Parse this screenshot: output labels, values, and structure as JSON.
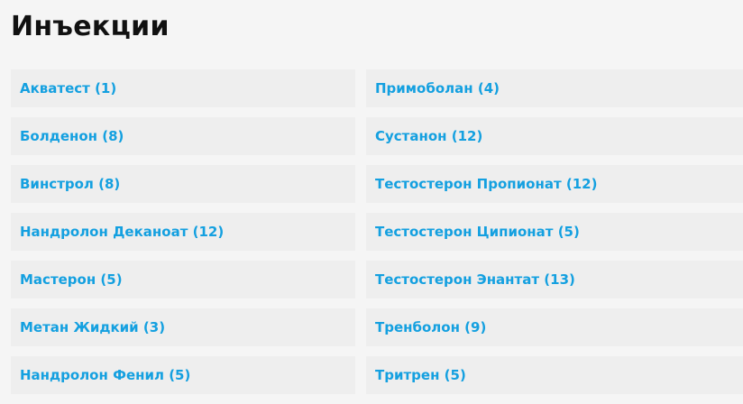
{
  "title": "Инъекции",
  "link_color": "#14a0e0",
  "left_items": [
    {
      "label": "Акватест (1)"
    },
    {
      "label": "Болденон (8)"
    },
    {
      "label": "Винстрол (8)"
    },
    {
      "label": "Нандролон Деканоат (12)"
    },
    {
      "label": "Мастерон (5)"
    },
    {
      "label": "Метан Жидкий (3)"
    },
    {
      "label": "Нандролон Фенил (5)"
    }
  ],
  "right_items": [
    {
      "label": "Примоболан (4)"
    },
    {
      "label": "Сустанон (12)"
    },
    {
      "label": "Тестостерон Пропионат (12)"
    },
    {
      "label": "Тестостерон Ципионат (5)"
    },
    {
      "label": "Тестостерон Энантат (13)"
    },
    {
      "label": "Тренболон (9)"
    },
    {
      "label": "Тритрен (5)"
    }
  ]
}
